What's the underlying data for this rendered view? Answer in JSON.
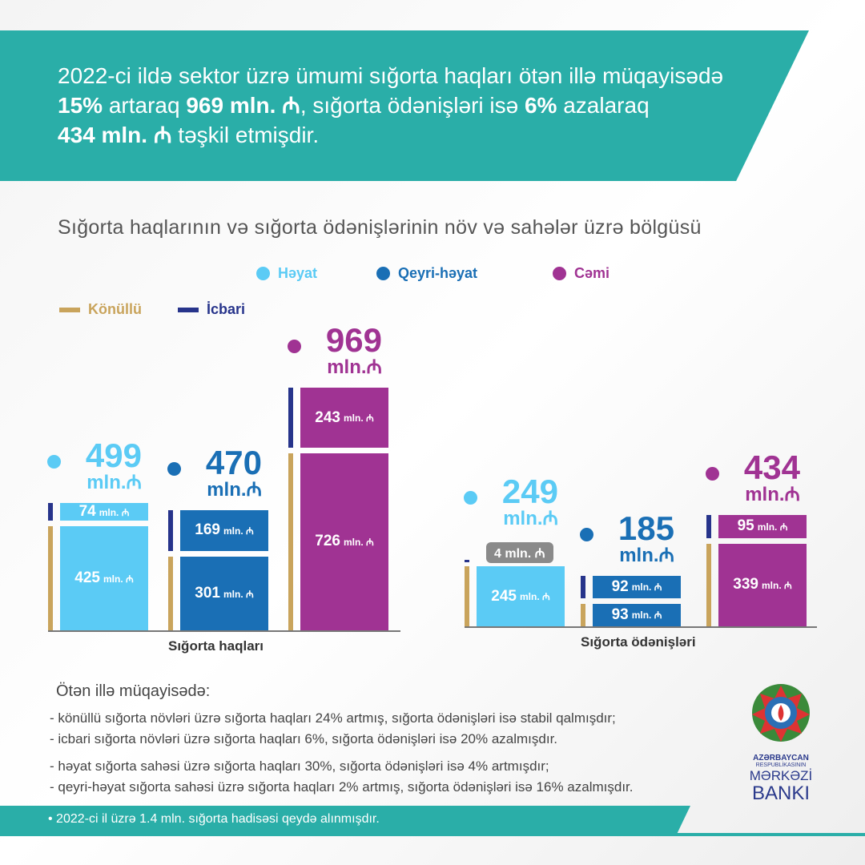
{
  "header": {
    "line1": "2022-ci ildə sektor üzrə ümumi sığorta haqları ötən illə müqayisədə",
    "p1": "15%",
    "t1": " artaraq ",
    "p2": "969 mln. ₼",
    "t2": ", sığorta ödənişləri isə ",
    "p3": "6%",
    "t3": " azalaraq",
    "p4": "434 mln. ₼",
    "t4": " təşkil etmişdir."
  },
  "subtitle": "Sığorta haqlarının və sığorta ödənişlərinin növ və sahələr üzrə bölgüsü",
  "legend": {
    "hayat": "Həyat",
    "qeyri": "Qeyri-həyat",
    "cemi": "Cəmi",
    "konullu": "Könüllü",
    "icbari": "İcbari"
  },
  "colors": {
    "hayat": "#5bcbf5",
    "qeyri": "#1a6fb5",
    "cemi": "#a03393",
    "konullu": "#c9a45c",
    "icbari": "#27348b",
    "teal": "#2aaea8"
  },
  "chart_data": {
    "type": "bar",
    "stacked": true,
    "unit": "mln. ₼",
    "groups": [
      {
        "name": "Sığorta haqları",
        "series": [
          {
            "name": "Həyat",
            "total": 499,
            "konullu": 425,
            "icbari": 74
          },
          {
            "name": "Qeyri-həyat",
            "total": 470,
            "konullu": 301,
            "icbari": 169
          },
          {
            "name": "Cəmi",
            "total": 969,
            "konullu": 726,
            "icbari": 243
          }
        ]
      },
      {
        "name": "Sığorta ödənişləri",
        "series": [
          {
            "name": "Həyat",
            "total": 249,
            "konullu": 245,
            "icbari": 4
          },
          {
            "name": "Qeyri-həyat",
            "total": 185,
            "konullu": 93,
            "icbari": 92
          },
          {
            "name": "Cəmi",
            "total": 434,
            "konullu": 339,
            "icbari": 95
          }
        ]
      }
    ]
  },
  "notes": {
    "heading": "Ötən illə müqayisədə:",
    "items": [
      "- könüllü sığorta növləri üzrə sığorta haqları 24% artmış, sığorta ödənişləri isə stabil qalmışdır;",
      "- icbari sığorta növləri üzrə sığorta haqları 6%, sığorta ödənişləri isə 20% azalmışdır.",
      "- həyat sığorta sahəsi üzrə sığorta haqları 30%, sığorta ödənişləri isə 4% artmışdır;",
      "- qeyri-həyat sığorta sahəsi üzrə sığorta haqları 2% artmış, sığorta ödənişləri isə 16% azalmışdır."
    ]
  },
  "footer": "• 2022-ci il üzrə 1.4 mln. sığorta hadisəsi qeydə alınmışdır.",
  "logo": {
    "l1": "AZƏRBAYCAN",
    "l2": "RESPUBLİKASININ",
    "l3": "MƏRKƏZİ",
    "l4": "BANKI"
  }
}
